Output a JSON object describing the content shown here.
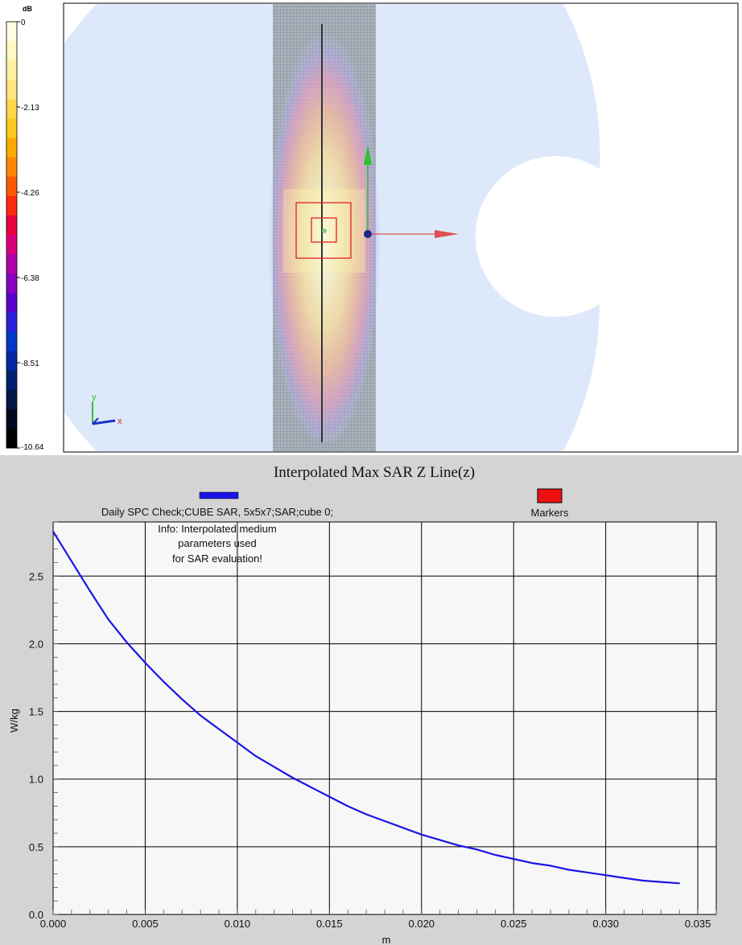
{
  "colorbar": {
    "unit": "dB",
    "ticks": [
      "0",
      "-2.13",
      "-4.26",
      "-6.38",
      "-8.51",
      "-10.64"
    ],
    "colors": [
      "#fffde0",
      "#fff8c0",
      "#fff0a0",
      "#ffe680",
      "#ffd84a",
      "#ffc820",
      "#ffaa00",
      "#ff8800",
      "#ff5a00",
      "#ff2a10",
      "#e80040",
      "#d8007a",
      "#b000a8",
      "#8800c0",
      "#5a00d0",
      "#2a20d8",
      "#0038c8",
      "#0028a0",
      "#002070",
      "#001848",
      "#000820",
      "#000000"
    ]
  },
  "view3d": {
    "axis_labels": {
      "x": "x",
      "y": "y"
    }
  },
  "chart_data": {
    "type": "line",
    "title": "Interpolated Max SAR Z Line(z)",
    "xlabel": "m",
    "ylabel": "W/kg",
    "xlim": [
      0,
      0.036
    ],
    "ylim": [
      0,
      2.9
    ],
    "xticks": [
      0,
      0.005,
      0.01,
      0.015,
      0.02,
      0.025,
      0.03,
      0.035
    ],
    "xtick_labels": [
      "0.000",
      "0.005",
      "0.010",
      "0.015",
      "0.020",
      "0.025",
      "0.030",
      "0.035"
    ],
    "yticks": [
      0,
      0.5,
      1.0,
      1.5,
      2.0,
      2.5
    ],
    "ytick_labels": [
      "0.0",
      "0.5",
      "1.0",
      "1.5",
      "2.0",
      "2.5"
    ],
    "grid": true,
    "legend_placement": "top",
    "series": [
      {
        "name": "Daily SPC Check;CUBE SAR, 5x5x7;SAR;cube 0;",
        "color": "#1a14e6",
        "x": [
          0,
          0.001,
          0.002,
          0.003,
          0.004,
          0.005,
          0.006,
          0.007,
          0.008,
          0.009,
          0.01,
          0.011,
          0.012,
          0.013,
          0.014,
          0.015,
          0.016,
          0.017,
          0.018,
          0.019,
          0.02,
          0.021,
          0.022,
          0.023,
          0.024,
          0.025,
          0.026,
          0.027,
          0.028,
          0.029,
          0.03,
          0.031,
          0.032,
          0.033,
          0.034
        ],
        "y": [
          2.83,
          2.61,
          2.39,
          2.18,
          2.01,
          1.86,
          1.72,
          1.59,
          1.47,
          1.37,
          1.27,
          1.17,
          1.09,
          1.01,
          0.94,
          0.87,
          0.8,
          0.74,
          0.69,
          0.64,
          0.59,
          0.55,
          0.51,
          0.48,
          0.44,
          0.41,
          0.38,
          0.36,
          0.33,
          0.31,
          0.29,
          0.27,
          0.25,
          0.24,
          0.23
        ]
      },
      {
        "name": "Markers",
        "color": "#ee1111",
        "x": [],
        "y": []
      }
    ],
    "annotation": [
      "Info: Interpolated medium",
      "parameters used",
      "for SAR evaluation!"
    ]
  }
}
